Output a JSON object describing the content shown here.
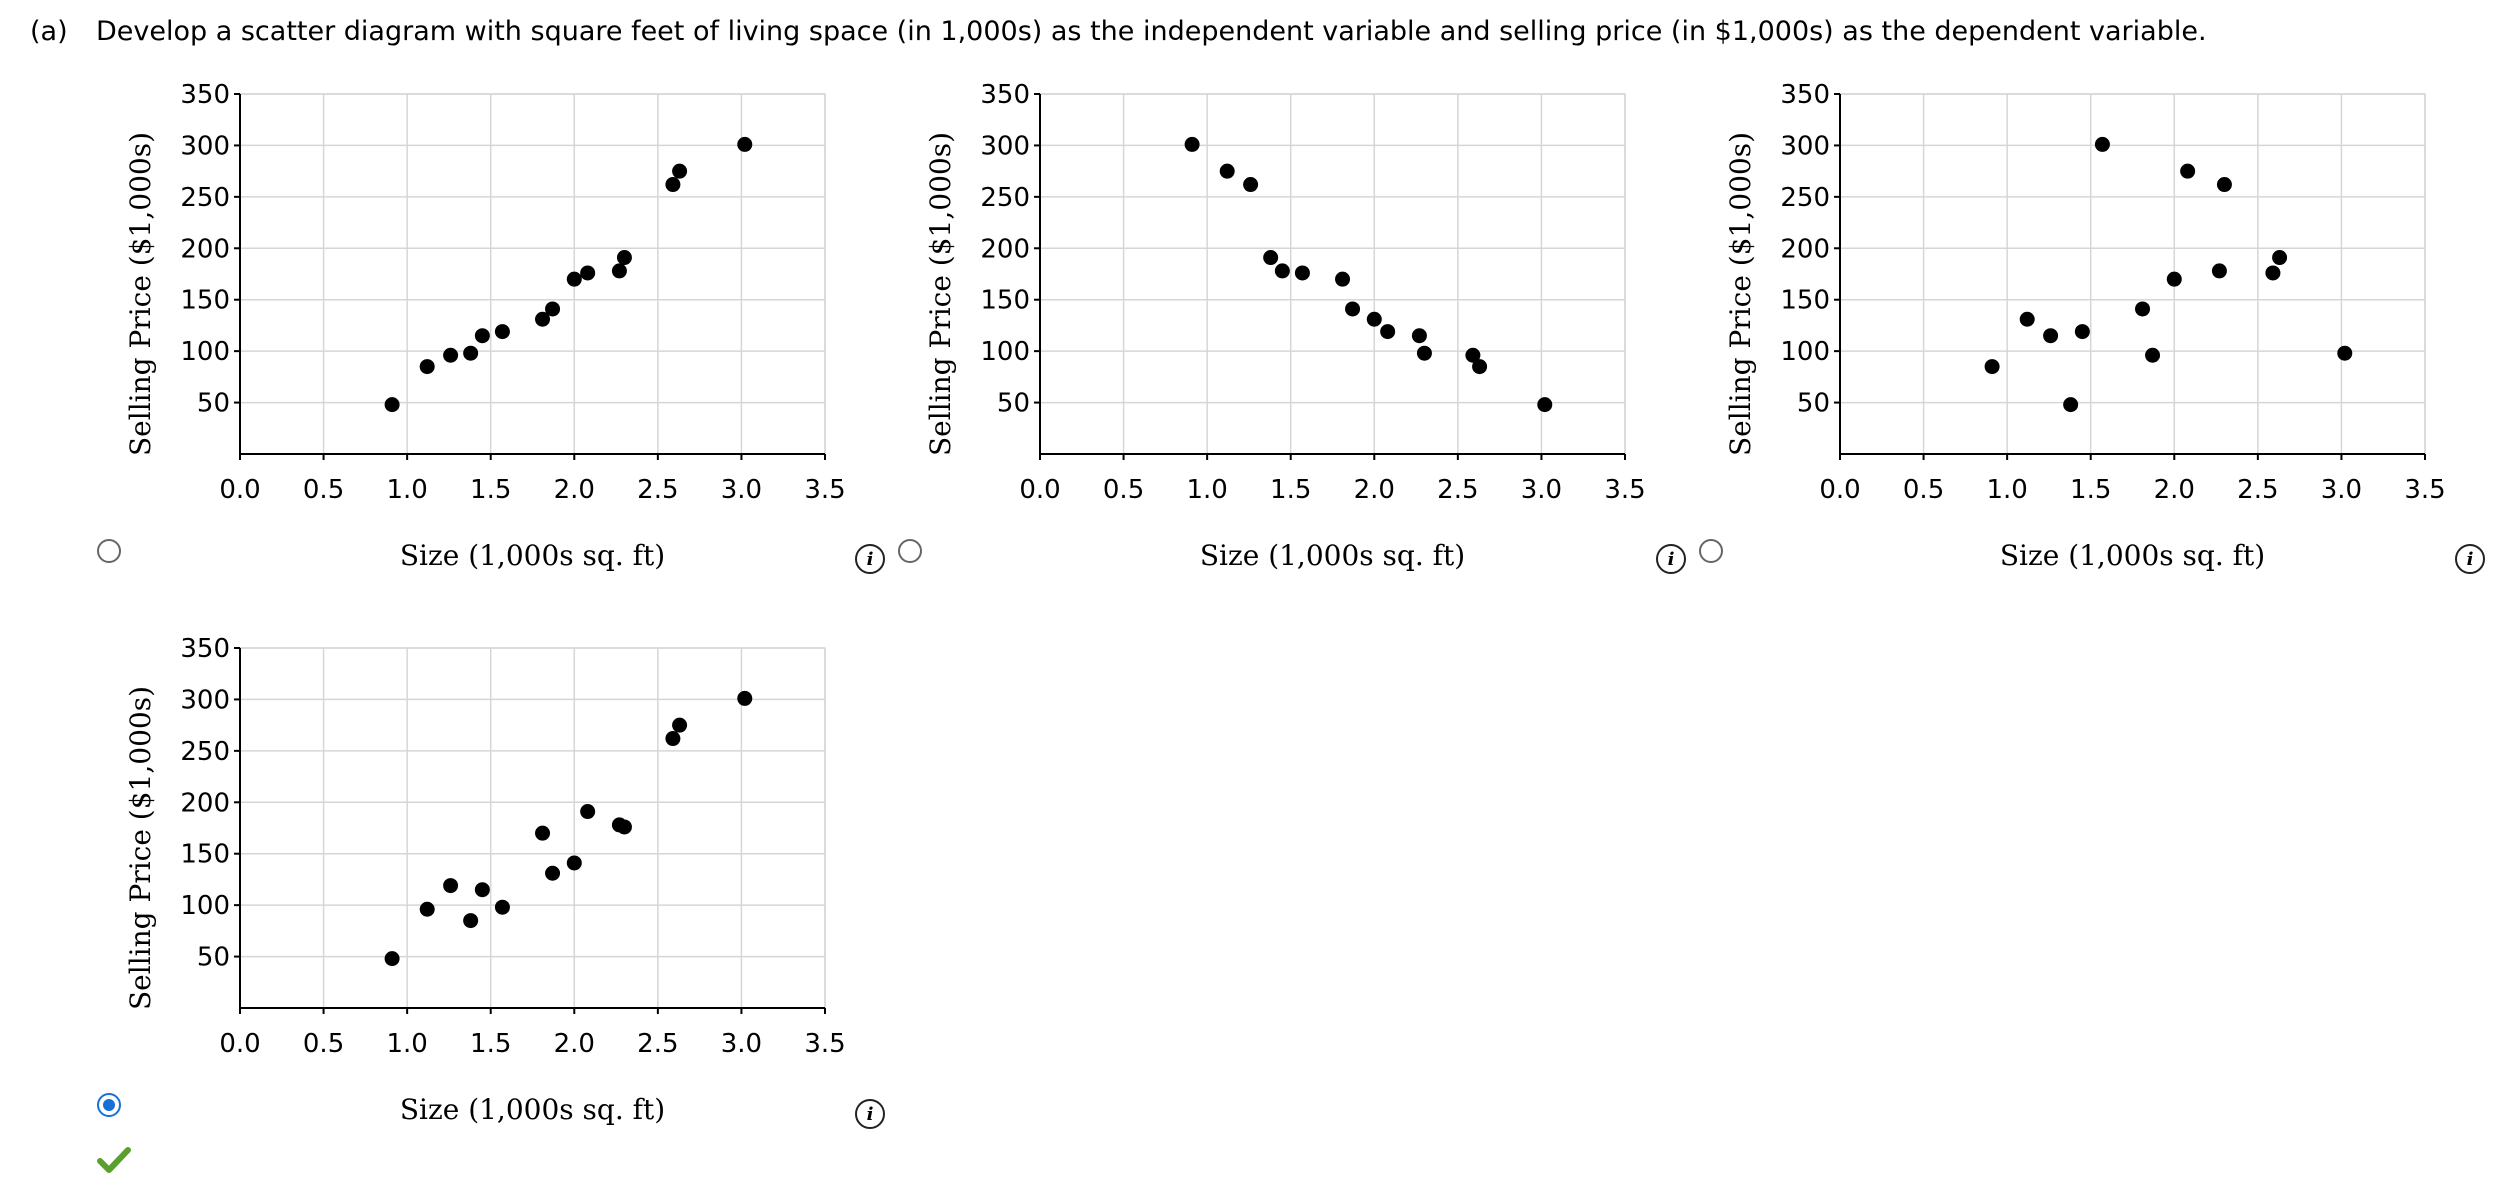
{
  "question": {
    "part": "(a)",
    "text": "Develop a scatter diagram with square feet of living space (in 1,000s) as the independent variable and selling price (in $1,000s) as the dependent variable."
  },
  "icons": {
    "info": "info-icon",
    "correct": "checkmark-icon",
    "correct_color": "#5aa02c"
  },
  "colors": {
    "selected": "#1a6fd6",
    "point": "#000000",
    "grid": "#d6d6d6"
  },
  "selected_option": 3,
  "chart_data": [
    {
      "type": "scatter",
      "xlabel": "Size (1,000s sq. ft)",
      "ylabel": "Selling Price ($1,000s)",
      "xlim": [
        0,
        3.5
      ],
      "ylim": [
        0,
        350
      ],
      "xticks": [
        "0.0",
        "0.5",
        "1.0",
        "1.5",
        "2.0",
        "2.5",
        "3.0",
        "3.5"
      ],
      "yticks": [
        "50",
        "100",
        "150",
        "200",
        "250",
        "300",
        "350"
      ],
      "grid": true,
      "points": [
        [
          0.91,
          48
        ],
        [
          1.12,
          85
        ],
        [
          1.26,
          96
        ],
        [
          1.38,
          98
        ],
        [
          1.45,
          115
        ],
        [
          1.57,
          119
        ],
        [
          1.81,
          131
        ],
        [
          1.87,
          141
        ],
        [
          2.0,
          170
        ],
        [
          2.08,
          176
        ],
        [
          2.27,
          178
        ],
        [
          2.3,
          191
        ],
        [
          2.59,
          262
        ],
        [
          2.63,
          275
        ],
        [
          3.02,
          301
        ]
      ]
    },
    {
      "type": "scatter",
      "xlabel": "Size (1,000s sq. ft)",
      "ylabel": "Selling Price ($1,000s)",
      "xlim": [
        0,
        3.5
      ],
      "ylim": [
        0,
        350
      ],
      "xticks": [
        "0.0",
        "0.5",
        "1.0",
        "1.5",
        "2.0",
        "2.5",
        "3.0",
        "3.5"
      ],
      "yticks": [
        "50",
        "100",
        "150",
        "200",
        "250",
        "300",
        "350"
      ],
      "grid": true,
      "points": [
        [
          0.91,
          301
        ],
        [
          1.12,
          275
        ],
        [
          1.26,
          262
        ],
        [
          1.38,
          191
        ],
        [
          1.45,
          178
        ],
        [
          1.57,
          176
        ],
        [
          1.81,
          170
        ],
        [
          1.87,
          141
        ],
        [
          2.0,
          131
        ],
        [
          2.08,
          119
        ],
        [
          2.27,
          115
        ],
        [
          2.3,
          98
        ],
        [
          2.59,
          96
        ],
        [
          2.63,
          85
        ],
        [
          3.02,
          48
        ]
      ]
    },
    {
      "type": "scatter",
      "xlabel": "Size (1,000s sq. ft)",
      "ylabel": "Selling Price ($1,000s)",
      "xlim": [
        0,
        3.5
      ],
      "ylim": [
        0,
        350
      ],
      "xticks": [
        "0.0",
        "0.5",
        "1.0",
        "1.5",
        "2.0",
        "2.5",
        "3.0",
        "3.5"
      ],
      "yticks": [
        "50",
        "100",
        "150",
        "200",
        "250",
        "300",
        "350"
      ],
      "grid": true,
      "points": [
        [
          0.91,
          85
        ],
        [
          1.12,
          131
        ],
        [
          1.26,
          115
        ],
        [
          1.38,
          48
        ],
        [
          1.45,
          119
        ],
        [
          1.57,
          301
        ],
        [
          1.81,
          141
        ],
        [
          1.87,
          96
        ],
        [
          2.0,
          170
        ],
        [
          2.08,
          275
        ],
        [
          2.27,
          178
        ],
        [
          2.3,
          262
        ],
        [
          2.59,
          176
        ],
        [
          2.63,
          191
        ],
        [
          3.02,
          98
        ]
      ]
    },
    {
      "type": "scatter",
      "xlabel": "Size (1,000s sq. ft)",
      "ylabel": "Selling Price ($1,000s)",
      "xlim": [
        0,
        3.5
      ],
      "ylim": [
        0,
        350
      ],
      "xticks": [
        "0.0",
        "0.5",
        "1.0",
        "1.5",
        "2.0",
        "2.5",
        "3.0",
        "3.5"
      ],
      "yticks": [
        "50",
        "100",
        "150",
        "200",
        "250",
        "300",
        "350"
      ],
      "grid": true,
      "points": [
        [
          0.91,
          48
        ],
        [
          1.12,
          96
        ],
        [
          1.26,
          119
        ],
        [
          1.38,
          85
        ],
        [
          1.45,
          115
        ],
        [
          1.57,
          98
        ],
        [
          1.81,
          170
        ],
        [
          1.87,
          131
        ],
        [
          2.0,
          141
        ],
        [
          2.08,
          191
        ],
        [
          2.27,
          178
        ],
        [
          2.3,
          176
        ],
        [
          2.59,
          262
        ],
        [
          2.63,
          275
        ],
        [
          3.02,
          301
        ]
      ]
    }
  ]
}
